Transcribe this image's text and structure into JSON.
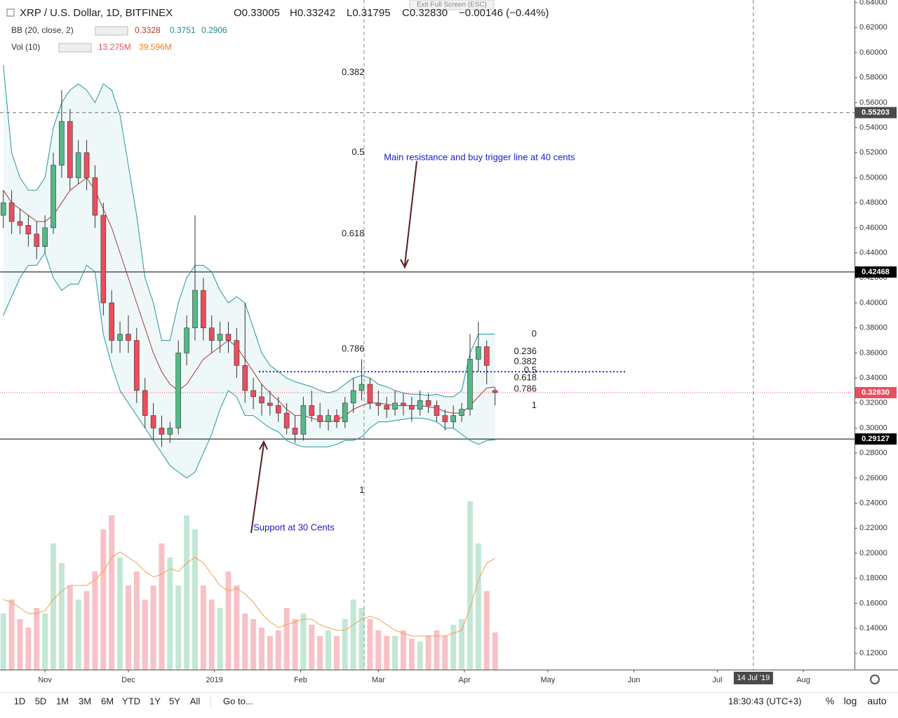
{
  "chart_data": {
    "type": "candlestick",
    "title": "XRP / U.S. Dollar, 1D, BITFINEX",
    "ohlc_legend": [
      "O0.33005",
      "H0.33242",
      "L0.31795",
      "C0.32830",
      "−0.00146 (−0.44%)"
    ],
    "bb_legend": {
      "name": "BB (20, close, 2)",
      "values": [
        "0.3328",
        "0.3751",
        "0.2906"
      ]
    },
    "vol_legend": {
      "name": "Vol (10)",
      "values": [
        "13.275M",
        "39.596M"
      ]
    },
    "exit_hint": "Exit Full Screen (ESC)",
    "annotations": [
      {
        "text": "Main resistance and buy trigger line at 40 cents",
        "x": 122,
        "price": 0.516
      },
      {
        "text": "Support at 30 Cents",
        "x": 75,
        "price": 0.22
      }
    ],
    "x": [
      -15,
      -12,
      -9,
      -6,
      -3,
      0,
      3,
      6,
      9,
      12,
      15,
      18,
      21,
      24,
      27,
      30,
      33,
      36,
      39,
      42,
      45,
      48,
      51,
      54,
      57,
      60,
      63,
      66,
      69,
      72,
      75,
      78,
      81,
      84,
      87,
      90,
      93,
      96,
      99,
      102,
      105,
      108,
      111,
      114,
      117,
      120,
      123,
      126,
      129,
      132,
      135,
      138,
      141,
      144,
      147,
      150,
      153,
      156,
      159,
      162
    ],
    "open": [
      0.47,
      0.48,
      0.465,
      0.462,
      0.455,
      0.445,
      0.46,
      0.51,
      0.545,
      0.5,
      0.52,
      0.5,
      0.47,
      0.4,
      0.37,
      0.375,
      0.37,
      0.33,
      0.31,
      0.3,
      0.295,
      0.3,
      0.36,
      0.38,
      0.41,
      0.38,
      0.37,
      0.375,
      0.37,
      0.35,
      0.33,
      0.325,
      0.32,
      0.318,
      0.312,
      0.3,
      0.295,
      0.318,
      0.31,
      0.305,
      0.31,
      0.305,
      0.32,
      0.33,
      0.335,
      0.32,
      0.318,
      0.315,
      0.32,
      0.318,
      0.315,
      0.322,
      0.318,
      0.31,
      0.305,
      0.31,
      0.315,
      0.355,
      0.365,
      0.33005
    ],
    "high": [
      0.49,
      0.49,
      0.475,
      0.47,
      0.465,
      0.47,
      0.52,
      0.57,
      0.555,
      0.53,
      0.53,
      0.51,
      0.48,
      0.41,
      0.385,
      0.39,
      0.38,
      0.34,
      0.32,
      0.31,
      0.305,
      0.37,
      0.39,
      0.47,
      0.42,
      0.39,
      0.385,
      0.385,
      0.38,
      0.4,
      0.34,
      0.335,
      0.33,
      0.325,
      0.32,
      0.31,
      0.325,
      0.33,
      0.32,
      0.315,
      0.315,
      0.325,
      0.34,
      0.355,
      0.34,
      0.33,
      0.325,
      0.33,
      0.328,
      0.325,
      0.33,
      0.328,
      0.322,
      0.315,
      0.318,
      0.32,
      0.375,
      0.385,
      0.37,
      0.33242
    ],
    "low": [
      0.46,
      0.455,
      0.455,
      0.445,
      0.435,
      0.44,
      0.455,
      0.5,
      0.49,
      0.495,
      0.49,
      0.46,
      0.39,
      0.36,
      0.36,
      0.36,
      0.32,
      0.3,
      0.29,
      0.285,
      0.288,
      0.295,
      0.35,
      0.37,
      0.37,
      0.36,
      0.36,
      0.36,
      0.34,
      0.32,
      0.315,
      0.31,
      0.31,
      0.305,
      0.295,
      0.288,
      0.29,
      0.305,
      0.3,
      0.298,
      0.3,
      0.3,
      0.312,
      0.322,
      0.315,
      0.31,
      0.308,
      0.31,
      0.31,
      0.305,
      0.31,
      0.312,
      0.305,
      0.298,
      0.3,
      0.305,
      0.31,
      0.345,
      0.335,
      0.31795
    ],
    "close": [
      0.48,
      0.465,
      0.462,
      0.455,
      0.445,
      0.46,
      0.51,
      0.545,
      0.5,
      0.52,
      0.5,
      0.47,
      0.4,
      0.37,
      0.375,
      0.37,
      0.33,
      0.31,
      0.3,
      0.295,
      0.3,
      0.36,
      0.38,
      0.41,
      0.38,
      0.37,
      0.375,
      0.37,
      0.35,
      0.33,
      0.325,
      0.32,
      0.318,
      0.312,
      0.3,
      0.295,
      0.318,
      0.31,
      0.305,
      0.31,
      0.305,
      0.32,
      0.33,
      0.335,
      0.32,
      0.318,
      0.315,
      0.32,
      0.318,
      0.315,
      0.322,
      0.318,
      0.31,
      0.305,
      0.31,
      0.315,
      0.355,
      0.365,
      0.35,
      0.3283
    ],
    "volume": [
      20,
      25,
      18,
      15,
      22,
      20,
      45,
      38,
      30,
      25,
      28,
      35,
      50,
      55,
      40,
      30,
      35,
      25,
      30,
      45,
      40,
      30,
      55,
      50,
      30,
      25,
      22,
      35,
      30,
      20,
      18,
      15,
      12,
      14,
      22,
      18,
      20,
      16,
      12,
      14,
      12,
      18,
      25,
      22,
      18,
      14,
      12,
      12,
      14,
      11,
      10,
      12,
      14,
      12,
      16,
      18,
      60,
      45,
      28,
      13.275
    ],
    "volume_ma": [
      25,
      24,
      22,
      20,
      20,
      21,
      25,
      28,
      30,
      30,
      30,
      32,
      35,
      40,
      42,
      40,
      38,
      35,
      33,
      34,
      36,
      35,
      38,
      40,
      38,
      34,
      30,
      28,
      29,
      27,
      24,
      20,
      17,
      15,
      16,
      17,
      18,
      18,
      16,
      15,
      14,
      14,
      16,
      18,
      19,
      18,
      16,
      14,
      13,
      12,
      12,
      12,
      12,
      12,
      13,
      14,
      22,
      32,
      38,
      39.596
    ],
    "bb_upper": [
      0.59,
      0.52,
      0.5,
      0.49,
      0.49,
      0.5,
      0.54,
      0.56,
      0.57,
      0.575,
      0.57,
      0.56,
      0.575,
      0.57,
      0.55,
      0.51,
      0.47,
      0.42,
      0.4,
      0.37,
      0.37,
      0.4,
      0.42,
      0.43,
      0.43,
      0.425,
      0.41,
      0.4,
      0.405,
      0.4,
      0.38,
      0.36,
      0.35,
      0.345,
      0.34,
      0.337,
      0.335,
      0.333,
      0.33,
      0.328,
      0.33,
      0.335,
      0.34,
      0.342,
      0.34,
      0.335,
      0.333,
      0.33,
      0.328,
      0.327,
      0.327,
      0.326,
      0.327,
      0.325,
      0.325,
      0.33,
      0.36,
      0.375,
      0.375,
      0.3751
    ],
    "bb_basis": [
      0.49,
      0.48,
      0.475,
      0.47,
      0.465,
      0.465,
      0.47,
      0.48,
      0.49,
      0.495,
      0.5,
      0.49,
      0.475,
      0.46,
      0.44,
      0.42,
      0.4,
      0.38,
      0.36,
      0.345,
      0.335,
      0.33,
      0.335,
      0.345,
      0.355,
      0.36,
      0.365,
      0.37,
      0.365,
      0.355,
      0.345,
      0.335,
      0.328,
      0.322,
      0.315,
      0.31,
      0.31,
      0.308,
      0.306,
      0.305,
      0.306,
      0.31,
      0.315,
      0.318,
      0.32,
      0.32,
      0.319,
      0.318,
      0.318,
      0.318,
      0.318,
      0.317,
      0.316,
      0.313,
      0.312,
      0.312,
      0.318,
      0.325,
      0.332,
      0.3328
    ],
    "bb_lower": [
      0.39,
      0.405,
      0.42,
      0.43,
      0.43,
      0.44,
      0.42,
      0.41,
      0.415,
      0.415,
      0.43,
      0.425,
      0.375,
      0.35,
      0.33,
      0.32,
      0.31,
      0.3,
      0.29,
      0.28,
      0.27,
      0.265,
      0.26,
      0.265,
      0.28,
      0.295,
      0.315,
      0.33,
      0.325,
      0.31,
      0.31,
      0.305,
      0.3,
      0.297,
      0.29,
      0.287,
      0.285,
      0.285,
      0.285,
      0.285,
      0.287,
      0.29,
      0.29,
      0.293,
      0.3,
      0.305,
      0.305,
      0.306,
      0.307,
      0.308,
      0.308,
      0.307,
      0.305,
      0.3,
      0.3,
      0.295,
      0.29,
      0.287,
      0.29,
      0.2906
    ],
    "up_color": "#53b987",
    "down_color": "#eb4d5c",
    "band_color": "#22979a",
    "xlim": [
      -16.2,
      291.4
    ],
    "xticks": [
      {
        "value": 0,
        "label": "Nov"
      },
      {
        "value": 30,
        "label": "Dec"
      },
      {
        "value": 61,
        "label": "2019"
      },
      {
        "value": 92,
        "label": "Feb"
      },
      {
        "value": 120,
        "label": "Mar"
      },
      {
        "value": 151,
        "label": "Apr"
      },
      {
        "value": 181,
        "label": "May"
      },
      {
        "value": 212,
        "label": "Jun"
      },
      {
        "value": 242,
        "label": "Jul"
      },
      {
        "value": 273,
        "label": "Aug"
      }
    ],
    "ylim": [
      0.107,
      0.642
    ],
    "yticks": [
      {
        "value": 0.64,
        "label": "0.64000"
      },
      {
        "value": 0.62,
        "label": "0.62000"
      },
      {
        "value": 0.6,
        "label": "0.60000"
      },
      {
        "value": 0.58,
        "label": "0.58000"
      },
      {
        "value": 0.56,
        "label": "0.56000"
      },
      {
        "value": 0.54,
        "label": "0.54000"
      },
      {
        "value": 0.52,
        "label": "0.52000"
      },
      {
        "value": 0.5,
        "label": "0.50000"
      },
      {
        "value": 0.48,
        "label": "0.48000"
      },
      {
        "value": 0.46,
        "label": "0.46000"
      },
      {
        "value": 0.44,
        "label": "0.44000"
      },
      {
        "value": 0.42,
        "label": "0.42000"
      },
      {
        "value": 0.4,
        "label": "0.40000"
      },
      {
        "value": 0.38,
        "label": "0.38000"
      },
      {
        "value": 0.36,
        "label": "0.36000"
      },
      {
        "value": 0.34,
        "label": "0.34000"
      },
      {
        "value": 0.32,
        "label": "0.32000"
      },
      {
        "value": 0.3,
        "label": "0.30000"
      },
      {
        "value": 0.28,
        "label": "0.28000"
      },
      {
        "value": 0.26,
        "label": "0.26000"
      },
      {
        "value": 0.24,
        "label": "0.24000"
      },
      {
        "value": 0.22,
        "label": "0.22000"
      },
      {
        "value": 0.2,
        "label": "0.20000"
      },
      {
        "value": 0.18,
        "label": "0.18000"
      },
      {
        "value": 0.16,
        "label": "0.16000"
      },
      {
        "value": 0.14,
        "label": "0.14000"
      },
      {
        "value": 0.12,
        "label": "0.12000"
      }
    ],
    "price_lines": [
      {
        "value": 0.42468,
        "label": "0.42468",
        "color": "#000000"
      },
      {
        "value": 0.29127,
        "label": "0.29127",
        "color": "#000000"
      }
    ],
    "last_price": {
      "value": 0.3283,
      "label": "0.32830",
      "color": "#eb4d5c"
    },
    "trigger_line": {
      "value": 0.345,
      "x": [
        77,
        209
      ],
      "color": "#2323d9"
    },
    "crosshair": {
      "x": 255,
      "x_label": "14 Jul '19",
      "value": 0.55203,
      "label": "0.55203"
    },
    "fib_left": {
      "x": 115,
      "levels": [
        {
          "label": "0.382",
          "price": 0.584
        },
        {
          "label": "0.5",
          "price": 0.52
        },
        {
          "label": "0.618",
          "price": 0.455
        },
        {
          "label": "0.786",
          "price": 0.363
        },
        {
          "label": "1",
          "price": 0.25
        }
      ]
    },
    "fib_right": {
      "x": 177,
      "levels": [
        {
          "label": "0",
          "price": 0.375
        },
        {
          "label": "0.236",
          "price": 0.361
        },
        {
          "label": "0.382",
          "price": 0.353
        },
        {
          "label": "0.5",
          "price": 0.346
        },
        {
          "label": "0.618",
          "price": 0.34
        },
        {
          "label": "0.786",
          "price": 0.331
        },
        {
          "label": "1",
          "price": 0.318
        }
      ]
    },
    "toolbar": {
      "ranges": [
        "1D",
        "5D",
        "1M",
        "3M",
        "6M",
        "YTD",
        "1Y",
        "5Y",
        "All"
      ],
      "goto": "Go to...",
      "clock": "18:30:43 (UTC+3)",
      "options": [
        "%",
        "log",
        "auto"
      ]
    }
  }
}
